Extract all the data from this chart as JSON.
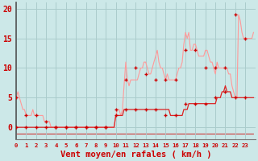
{
  "xlabel": "Vent moyen/en rafales ( km/h )",
  "background_color": "#cce8e8",
  "grid_color": "#aacccc",
  "text_color": "#cc0000",
  "ylim": [
    -2,
    21
  ],
  "xlim": [
    0,
    24
  ],
  "yticks": [
    0,
    5,
    10,
    15,
    20
  ],
  "xtick_labels": [
    "0",
    "1",
    "2",
    "3",
    "4",
    "5",
    "6",
    "7",
    "8",
    "9",
    "10",
    "11",
    "12",
    "13",
    "14",
    "15",
    "16",
    "17",
    "18",
    "19",
    "20",
    "21",
    "22",
    "23"
  ],
  "line1_color": "#ff9999",
  "line2_color": "#dd2222",
  "marker_color": "#cc0000",
  "bottom_line_color": "#cc0000",
  "hours": [
    0,
    0.17,
    0.33,
    0.5,
    0.67,
    0.83,
    1,
    1.17,
    1.33,
    1.5,
    1.67,
    1.83,
    2,
    2.17,
    2.33,
    2.5,
    2.67,
    2.83,
    3,
    3.17,
    3.33,
    3.5,
    3.67,
    3.83,
    4,
    4.17,
    4.33,
    4.5,
    4.67,
    4.83,
    5,
    5.17,
    5.33,
    5.5,
    5.67,
    5.83,
    6,
    6.17,
    6.33,
    6.5,
    6.67,
    6.83,
    7,
    7.17,
    7.33,
    7.5,
    7.67,
    7.83,
    8,
    8.17,
    8.33,
    8.5,
    8.67,
    8.83,
    9,
    9.17,
    9.33,
    9.5,
    9.67,
    9.83,
    10,
    10.17,
    10.33,
    10.5,
    10.67,
    10.83,
    11,
    11.17,
    11.33,
    11.5,
    11.67,
    11.83,
    12,
    12.17,
    12.33,
    12.5,
    12.67,
    12.83,
    13,
    13.17,
    13.33,
    13.5,
    13.67,
    13.83,
    14,
    14.17,
    14.33,
    14.5,
    14.67,
    14.83,
    15,
    15.17,
    15.33,
    15.5,
    15.67,
    15.83,
    16,
    16.17,
    16.33,
    16.5,
    16.67,
    16.83,
    17,
    17.17,
    17.33,
    17.5,
    17.67,
    17.83,
    18,
    18.17,
    18.33,
    18.5,
    18.67,
    18.83,
    19,
    19.17,
    19.33,
    19.5,
    19.67,
    19.83,
    20,
    20.17,
    20.33,
    20.5,
    20.67,
    20.83,
    21,
    21.17,
    21.33,
    21.5,
    21.67,
    21.83,
    22,
    22.17,
    22.33,
    22.5,
    22.67,
    22.83,
    23,
    23.17,
    23.33,
    23.5,
    23.67,
    23.83
  ],
  "rafales": [
    5,
    6,
    5,
    4,
    3,
    3,
    2,
    2,
    2,
    2,
    3,
    2,
    2,
    2,
    2,
    2,
    2,
    1,
    1,
    1,
    1,
    0,
    0,
    0,
    0,
    0,
    0,
    0,
    0,
    0,
    0,
    0,
    0,
    0,
    0,
    0,
    0,
    0,
    0,
    0,
    0,
    0,
    0,
    0,
    0,
    0,
    0,
    0,
    0,
    0,
    0,
    0,
    0,
    0,
    0,
    0,
    0,
    0,
    0,
    0,
    2,
    3,
    3,
    2,
    3,
    7,
    11,
    8,
    7,
    8,
    8,
    8,
    8,
    8,
    9,
    10,
    10,
    11,
    11,
    10,
    9,
    9,
    10,
    11,
    12,
    13,
    11,
    10,
    10,
    9,
    8,
    9,
    8,
    8,
    8,
    8,
    8,
    9,
    10,
    10,
    11,
    14,
    16,
    15,
    16,
    13,
    13,
    14,
    14,
    13,
    12,
    12,
    12,
    12,
    13,
    13,
    12,
    11,
    11,
    10,
    9,
    11,
    10,
    10,
    10,
    10,
    10,
    10,
    9,
    9,
    7,
    6,
    5,
    5,
    19,
    18,
    16,
    15,
    15,
    15,
    15,
    15,
    15,
    16
  ],
  "moyen": [
    0,
    0,
    0,
    0,
    0,
    0,
    0,
    0,
    0,
    0,
    0,
    0,
    0,
    0,
    0,
    0,
    0,
    0,
    0,
    0,
    0,
    0,
    0,
    0,
    0,
    0,
    0,
    0,
    0,
    0,
    0,
    0,
    0,
    0,
    0,
    0,
    0,
    0,
    0,
    0,
    0,
    0,
    0,
    0,
    0,
    0,
    0,
    0,
    0,
    0,
    0,
    0,
    0,
    0,
    0,
    0,
    0,
    0,
    0,
    0,
    2,
    2,
    2,
    2,
    2,
    3,
    3,
    3,
    3,
    3,
    3,
    3,
    3,
    3,
    3,
    3,
    3,
    3,
    3,
    3,
    3,
    3,
    3,
    3,
    3,
    3,
    3,
    3,
    3,
    3,
    3,
    3,
    3,
    2,
    2,
    2,
    2,
    2,
    2,
    2,
    2,
    3,
    3,
    3,
    4,
    4,
    4,
    4,
    4,
    4,
    4,
    4,
    4,
    4,
    4,
    4,
    4,
    4,
    4,
    4,
    4,
    5,
    5,
    5,
    6,
    6,
    7,
    6,
    6,
    6,
    5,
    5,
    5,
    5,
    5,
    5,
    5,
    5,
    5,
    5,
    5,
    5,
    5,
    5
  ],
  "gust_markers_h": [
    0,
    1,
    2,
    3,
    4,
    5,
    6,
    7,
    8,
    9,
    10,
    11,
    12,
    13,
    14,
    15,
    16,
    17,
    18,
    19,
    20,
    21,
    22,
    23
  ],
  "gust_markers_v": [
    5,
    2,
    2,
    1,
    0,
    0,
    0,
    0,
    0,
    0,
    3,
    8,
    10,
    9,
    8,
    8,
    8,
    13,
    13,
    10,
    10,
    10,
    19,
    15
  ],
  "mean_markers_h": [
    0,
    1,
    2,
    3,
    4,
    5,
    6,
    7,
    8,
    9,
    10,
    11,
    12,
    13,
    14,
    15,
    16,
    17,
    18,
    19,
    20,
    21,
    22,
    23
  ],
  "mean_markers_v": [
    0,
    0,
    0,
    0,
    0,
    0,
    0,
    0,
    0,
    0,
    2,
    3,
    3,
    3,
    3,
    2,
    2,
    4,
    4,
    4,
    5,
    6,
    5,
    5
  ],
  "bottom_y_vals": [
    -1,
    -1,
    -1,
    -1,
    -1,
    -1,
    -1,
    -1,
    -1,
    -1,
    -1,
    -1,
    -1,
    -1,
    -1,
    -1,
    -1,
    -1,
    -1,
    -1,
    -1,
    -1,
    -1,
    -1,
    -1,
    -1,
    -1,
    -1,
    -1,
    -1,
    -1,
    -1,
    -1,
    -1,
    -1,
    -1,
    -1,
    -1,
    -1,
    -1,
    -1,
    -1,
    -1,
    -1,
    -1,
    -1,
    -1,
    -1,
    -1,
    -1,
    -1,
    -1,
    -1,
    -1,
    -1,
    -1,
    -1,
    -1,
    -1,
    -1,
    -1,
    -1,
    -1,
    -1,
    -1,
    -1,
    -1,
    -1,
    -1,
    -1,
    -1,
    -1,
    -1,
    -1,
    -1,
    -1,
    -1,
    -1,
    -1,
    -1,
    -1,
    -1,
    -1,
    -1,
    -1,
    -1,
    -1,
    -1,
    -1,
    -1,
    -1,
    -1,
    -1,
    -1,
    -1,
    -1,
    -1,
    -1,
    -1,
    -1,
    -1,
    -1,
    -1,
    -1,
    -1,
    -1,
    -1,
    -1,
    -1,
    -1,
    -1,
    -1,
    -1,
    -1,
    -1,
    -1,
    -1,
    -1,
    -1,
    -1,
    -1,
    -1,
    -1,
    -1,
    -1,
    -1,
    -1,
    -1,
    -1,
    -1,
    -1,
    -1,
    -1,
    -1,
    -1,
    -1,
    -1,
    -1,
    -1,
    -1,
    -1,
    -1,
    -1,
    -1
  ]
}
